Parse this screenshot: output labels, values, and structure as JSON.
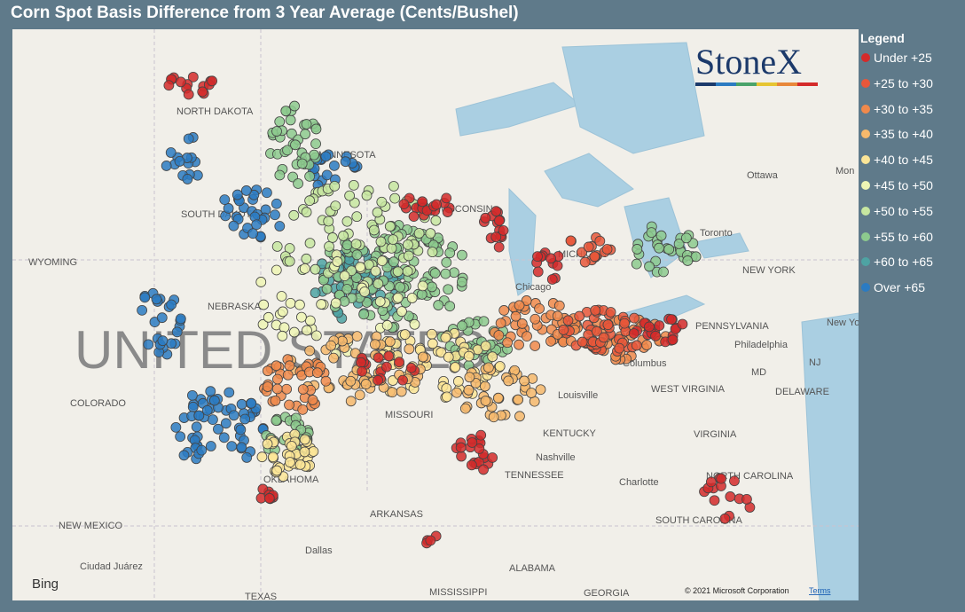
{
  "header": {
    "title": "Corn Spot Basis Difference from 3 Year Average (Cents/Bushel)"
  },
  "legend": {
    "title": "Legend",
    "items": [
      {
        "label": "Under +25",
        "color": "#d42a2a"
      },
      {
        "label": "+25 to +30",
        "color": "#e8573a"
      },
      {
        "label": "+30 to +35",
        "color": "#f0894b"
      },
      {
        "label": "+35 to +40",
        "color": "#f6b96c"
      },
      {
        "label": "+40 to +45",
        "color": "#fbe597"
      },
      {
        "label": "+45 to +50",
        "color": "#eef5b4"
      },
      {
        "label": "+50 to +55",
        "color": "#c7e6a0"
      },
      {
        "label": "+55 to +60",
        "color": "#8dca8e"
      },
      {
        "label": "+60 to +65",
        "color": "#4ea3a3"
      },
      {
        "label": "Over +65",
        "color": "#2b7bc2"
      }
    ]
  },
  "map": {
    "logo": "StoneX",
    "country": "UNITED STATES",
    "places": [
      "NORTH DAKOTA",
      "MINNESOTA",
      "SOUTH DAKOTA",
      "WYOMING",
      "NEBRASKA",
      "WISCONSIN",
      "MICHIGAN",
      "Chicago",
      "COLORADO",
      "MISSOURI",
      "KENTUCKY",
      "WEST VIRGINIA",
      "VIRGINIA",
      "PENNSYLVANIA",
      "NEW YORK",
      "Toronto",
      "Ottawa",
      "Mon",
      "Columbus",
      "Louisville",
      "Nashville",
      "TENNESSEE",
      "NORTH CAROLINA",
      "Charlotte",
      "SOUTH CAROLINA",
      "OKLAHOMA",
      "ARKANSAS",
      "NEW MEXICO",
      "Dallas",
      "ALABAMA",
      "GEORGIA",
      "MISSISSIPPI",
      "TEXAS",
      "Ciudad Juárez",
      "Philadelphia",
      "NJ",
      "MD",
      "DELAWARE",
      "New York"
    ],
    "provider": "Bing",
    "copyright": "© 2021 Microsoft Corporation",
    "terms": "Terms"
  }
}
